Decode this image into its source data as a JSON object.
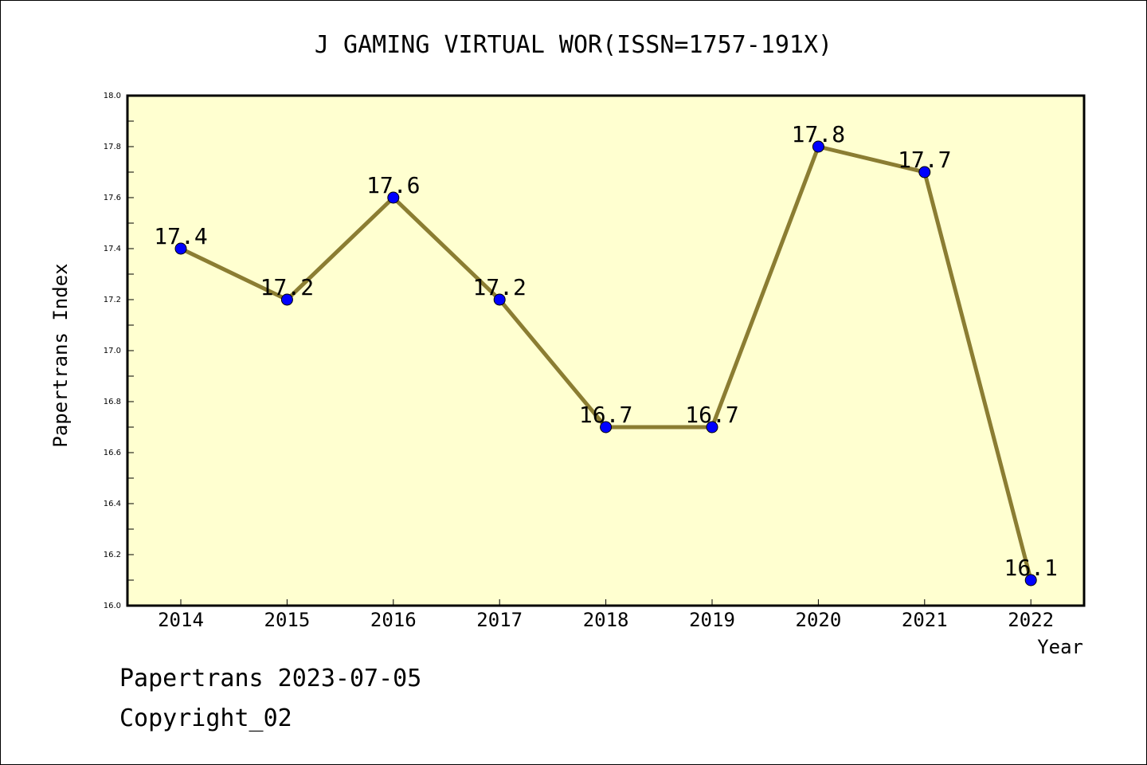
{
  "chart_data": {
    "type": "line",
    "title": "J GAMING VIRTUAL WOR(ISSN=1757-191X)",
    "xlabel": "Year",
    "ylabel": "Papertrans Index",
    "categories": [
      "2014",
      "2015",
      "2016",
      "2017",
      "2018",
      "2019",
      "2020",
      "2021",
      "2022"
    ],
    "values": [
      17.4,
      17.2,
      17.6,
      17.2,
      16.7,
      16.7,
      17.8,
      17.7,
      16.1
    ],
    "data_labels": [
      "17.4",
      "17.2",
      "17.6",
      "17.2",
      "16.7",
      "16.7",
      "17.8",
      "17.7",
      "16.1"
    ],
    "ylim": [
      16.0,
      18.0
    ],
    "yticks": [
      "16.0",
      "16.2",
      "16.4",
      "16.6",
      "16.8",
      "17.0",
      "17.2",
      "17.4",
      "17.6",
      "17.8",
      "18.0"
    ],
    "grid": false,
    "colors": {
      "plot_background": "#ffffd0",
      "line": "#8b7d32",
      "marker": "#0000ff"
    }
  },
  "footer": {
    "line1": "Papertrans 2023-07-05",
    "line2": "Copyright_02"
  }
}
